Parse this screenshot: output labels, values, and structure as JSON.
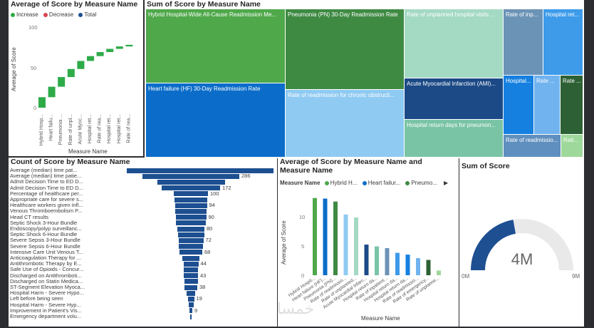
{
  "waterfall": {
    "title": "Average of Score by Measure Name",
    "legend": [
      {
        "label": "Increase",
        "color": "#2eab49"
      },
      {
        "label": "Decrease",
        "color": "#d64550"
      },
      {
        "label": "Total",
        "color": "#1d4f91"
      }
    ],
    "y_axis_label": "Average of Score",
    "x_axis_label": "Measure Name",
    "y_ticks": [
      "100",
      "50",
      "0"
    ],
    "categories": [
      "Hybrid Hosp...",
      "Heart failu...",
      "Pneumonia ...",
      "Rate of unpl...",
      "Acute Myoc...",
      "Hospital ret...",
      "Rate of rea...",
      "Hospital ret...",
      "Hospital ret...",
      "Rate of rea..."
    ],
    "chart_data": {
      "type": "waterfall",
      "title": "Average of Score by Measure Name",
      "xlabel": "Measure Name",
      "ylabel": "Average of Score",
      "ylim": [
        0,
        110
      ],
      "categories": [
        "Hybrid Hosp...",
        "Heart failu...",
        "Pneumonia ...",
        "Rate of unpl...",
        "Acute Myoc...",
        "Hospital ret...",
        "Rate of rea...",
        "Hospital ret...",
        "Hospital ret...",
        "Rate of rea..."
      ],
      "increments": [
        13,
        13,
        12,
        10,
        10,
        6,
        5,
        4,
        3,
        2
      ]
    }
  },
  "treemap": {
    "title": "Sum of Score by Measure Name",
    "tiles": [
      {
        "label": "Hybrid Hospital-Wide All-Cause Readmission Me...",
        "color": "#4fa84a",
        "text": "#ffffff"
      },
      {
        "label": "Heart failure (HF) 30-Day Readmission Rate",
        "color": "#0b6dc9",
        "text": "#ffffff"
      },
      {
        "label": "Pneumonia (PN) 30-Day Readmission Rate",
        "color": "#3f8a43",
        "text": "#ffffff"
      },
      {
        "label": "Rate of readmission for chronic obstructi...",
        "color": "#8fcaf2",
        "text": "#ffffff"
      },
      {
        "label": "Rate of unplanned hospital visits ...",
        "color": "#a4d9c3",
        "text": "#ffffff"
      },
      {
        "label": "Acute Myocardial Infarction (AMI)...",
        "color": "#1c4a86",
        "text": "#ffffff"
      },
      {
        "label": "Hospital return days for pneumon...",
        "color": "#7ac4a6",
        "text": "#ffffff"
      },
      {
        "label": "Rate of inp...",
        "color": "#6b93b6",
        "text": "#ffffff"
      },
      {
        "label": "Hospital ret...",
        "color": "#3d9bea",
        "text": "#ffffff"
      },
      {
        "label": "Hospital...",
        "color": "#1580e0",
        "text": "#ffffff"
      },
      {
        "label": "Rate ...",
        "color": "#71b3ee",
        "text": "#ffffff"
      },
      {
        "label": "Rate ...",
        "color": "#2d6135",
        "text": "#ffffff"
      },
      {
        "label": "Rate of readmissio...",
        "color": "#5f8fbe",
        "text": "#ffffff"
      },
      {
        "label": "Rati...",
        "color": "#9ed89a",
        "text": "#ffffff"
      }
    ]
  },
  "funnel": {
    "title": "Count of Score by Measure Name",
    "rows": [
      {
        "label": "Average (median) time pat...",
        "value": "",
        "w": 254
      },
      {
        "label": "Average (median) time patie...",
        "value": "286",
        "w": 136
      },
      {
        "label": "Admit Decision Time to ED D...",
        "value": "",
        "w": 95
      },
      {
        "label": "Admit Decision Time to ED D...",
        "value": "172",
        "w": 82
      },
      {
        "label": "Percentage of healthcare per...",
        "value": "100",
        "w": 48
      },
      {
        "label": "Appropriate care for severe s...",
        "value": "",
        "w": 46
      },
      {
        "label": "Healthcare workers given infl...",
        "value": "94",
        "w": 45
      },
      {
        "label": "Venous Thromboembolism P...",
        "value": "",
        "w": 44
      },
      {
        "label": "Head CT results",
        "value": "90",
        "w": 43
      },
      {
        "label": "Septic Shock 3-Hour Bundle",
        "value": "",
        "w": 42
      },
      {
        "label": "Endoscopy/polyp surveillanc...",
        "value": "80",
        "w": 38
      },
      {
        "label": "Septic Shock 6-Hour Bundle",
        "value": "",
        "w": 37
      },
      {
        "label": "Severe Sepsis 3-Hour Bundle",
        "value": "72",
        "w": 35
      },
      {
        "label": "Severe Sepsis 6-Hour Bundle",
        "value": "",
        "w": 34
      },
      {
        "label": "Intensive Care Unit Venous T...",
        "value": "68",
        "w": 32
      },
      {
        "label": "Anticoagulation Therapy for ...",
        "value": "",
        "w": 24
      },
      {
        "label": "Antithrombotic Therapy by E...",
        "value": "44",
        "w": 21
      },
      {
        "label": "Safe Use of Opioids - Concur...",
        "value": "",
        "w": 20
      },
      {
        "label": "Discharged on Antithromboti...",
        "value": "43",
        "w": 20
      },
      {
        "label": "Discharged on Statin Medica...",
        "value": "",
        "w": 19
      },
      {
        "label": "ST-Segment Elevation Myoca...",
        "value": "38",
        "w": 18
      },
      {
        "label": "Hospital Harm - Severe Hypo...",
        "value": "",
        "w": 12
      },
      {
        "label": "Left before being seen",
        "value": "19",
        "w": 9
      },
      {
        "label": "Hospital Harm - Severe Hyp...",
        "value": "",
        "w": 7
      },
      {
        "label": "Improvement in Patient's Vis...",
        "value": "9",
        "w": 4
      },
      {
        "label": "Emergency department volu...",
        "value": "",
        "w": 2
      }
    ]
  },
  "clustered": {
    "title": "Average of Score by Measure Name and Measure Name",
    "legend_label": "Measure Name",
    "legend": [
      {
        "label": "Hybrid H...",
        "color": "#4fa84a"
      },
      {
        "label": "Heart failur...",
        "color": "#0b6dc9"
      },
      {
        "label": "Pneumo...",
        "color": "#3f8a43"
      }
    ],
    "y_axis_label": "Average of Score",
    "x_axis_label": "Measure Name",
    "y_ticks": [
      "10",
      "5",
      "0"
    ],
    "chart_data": {
      "type": "bar",
      "title": "Average of Score by Measure Name and Measure Name",
      "xlabel": "Measure Name",
      "ylabel": "Average of Score",
      "ylim": [
        0,
        15
      ],
      "categories": [
        "Hybrid Hospit...",
        "Heart failure (HF)...",
        "Pneumonia (PN)...",
        "Rate of readmissio...",
        "Rate of unplanned...",
        "Acute Myocardial Infarc...",
        "Hospital return da...",
        "Rate of inpatient...",
        "Hospital return da...",
        "Hospital return da...",
        "Rate of readmissio...",
        "Rate of emergency...",
        "Rate of unplanne..."
      ],
      "values": [
        13.1,
        13.0,
        12.5,
        10.3,
        9.8,
        5.2,
        4.9,
        4.6,
        3.8,
        3.5,
        2.9,
        2.6,
        0.8
      ],
      "colors": [
        "#4fa84a",
        "#0b6dc9",
        "#3f8a43",
        "#8fcaf2",
        "#a4d9c3",
        "#1c4a86",
        "#7ac4a6",
        "#6b93b6",
        "#3d9bea",
        "#1580e0",
        "#71b3ee",
        "#2d6135",
        "#9ed89a"
      ]
    }
  },
  "gauge": {
    "title": "Sum of Score",
    "value_label": "4M",
    "min_label": "0M",
    "max_label": "9M",
    "value": 4,
    "max": 9,
    "fill_color": "#1d4f91",
    "track_color": "#e9e9e9"
  },
  "watermark": "خمسات"
}
